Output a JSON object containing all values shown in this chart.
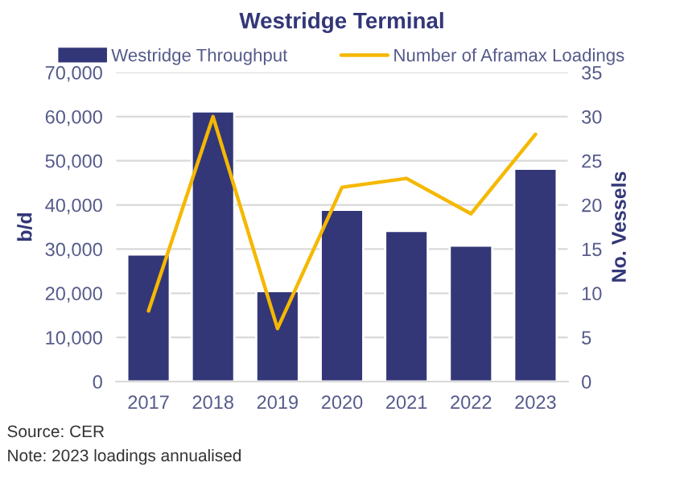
{
  "chart_data": {
    "type": "bar",
    "title": "Westridge Terminal",
    "ylabel": "b/d",
    "y2label": "No. Vessels",
    "categories": [
      "2017",
      "2018",
      "2019",
      "2020",
      "2021",
      "2022",
      "2023"
    ],
    "series": [
      {
        "name": "Westridge Throughput",
        "color": "#333778",
        "values": [
          28800,
          61200,
          20500,
          38900,
          34100,
          30800,
          48200
        ]
      },
      {
        "name": "Number of Aframax Loadings",
        "type": "line",
        "axis": "y2",
        "color": "#f5b800",
        "values": [
          8,
          30,
          6,
          22,
          23,
          19,
          28
        ]
      }
    ],
    "ylim": [
      0,
      70000
    ],
    "yticks": [
      {
        "value": 0,
        "label": "0"
      },
      {
        "value": 10000,
        "label": "10,000"
      },
      {
        "value": 20000,
        "label": "20,000"
      },
      {
        "value": 30000,
        "label": "30,000"
      },
      {
        "value": 40000,
        "label": "40,000"
      },
      {
        "value": 50000,
        "label": "50,000"
      },
      {
        "value": 60000,
        "label": "60,000"
      },
      {
        "value": 70000,
        "label": "70,000"
      }
    ],
    "y2lim": [
      0,
      35
    ],
    "y2ticks": [
      0,
      5,
      10,
      15,
      20,
      25,
      30,
      35
    ],
    "grid": "y",
    "legend": "top",
    "annotations": [
      "Source: CER",
      "Note: 2023 loadings annualised"
    ]
  }
}
